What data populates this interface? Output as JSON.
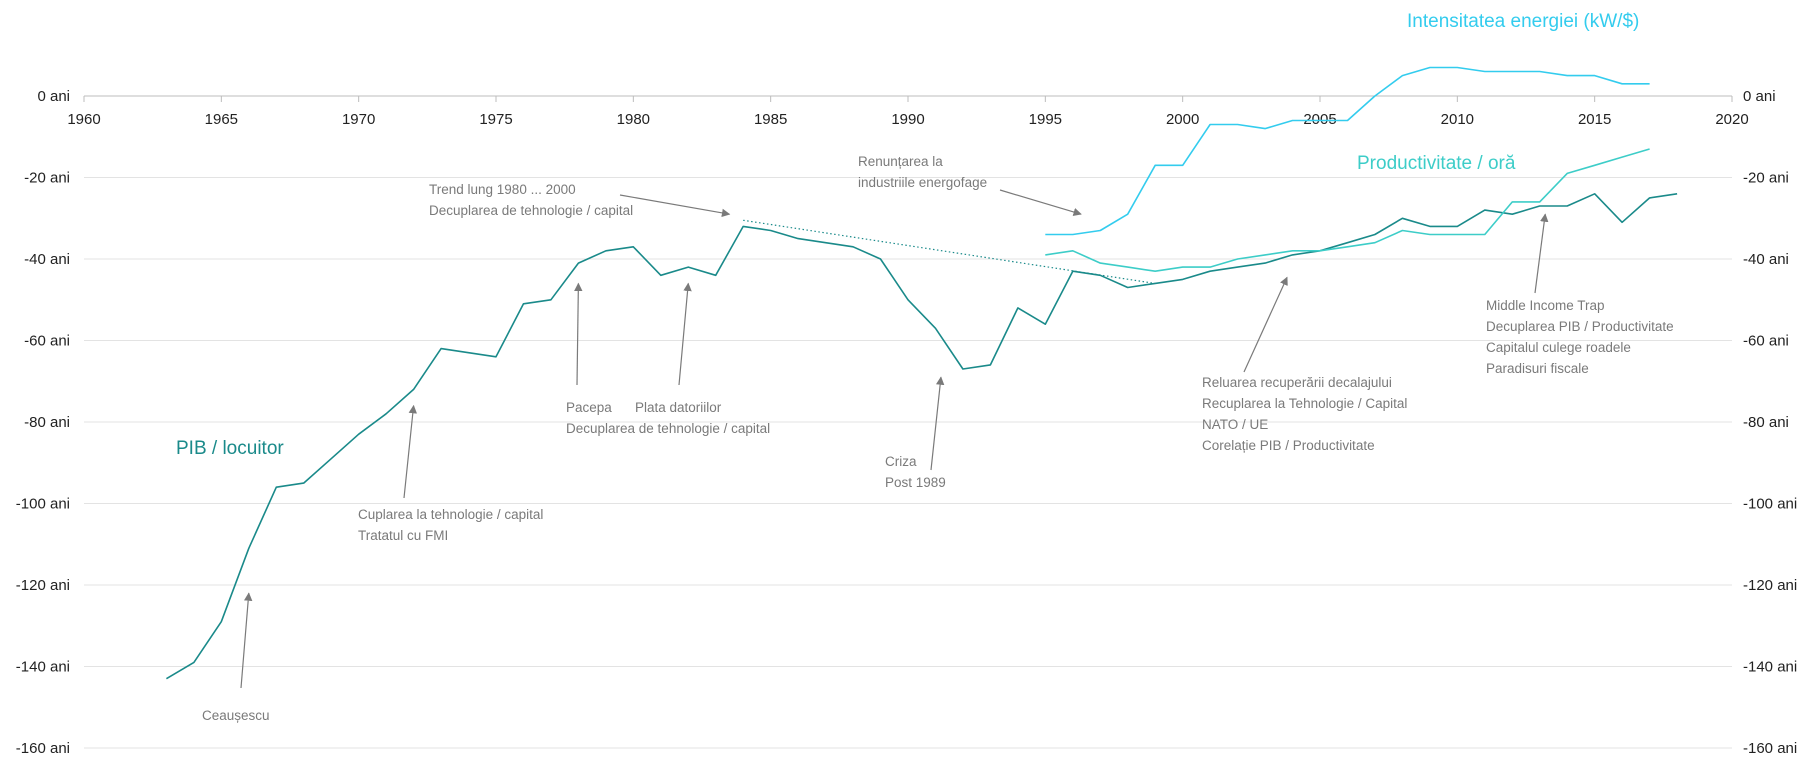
{
  "chart_data": {
    "type": "line",
    "title": "",
    "xlabel": "",
    "ylabel": "",
    "xlim": [
      1960,
      2020
    ],
    "ylim": [
      -160,
      0
    ],
    "y_unit": "ani",
    "x_ticks": [
      1960,
      1965,
      1970,
      1975,
      1980,
      1985,
      1990,
      1995,
      2000,
      2005,
      2010,
      2015,
      2020
    ],
    "y_ticks": [
      0,
      -20,
      -40,
      -60,
      -80,
      -100,
      -120,
      -140,
      -160
    ],
    "y_tick_labels": [
      "0 ani",
      "-20 ani",
      "-40 ani",
      "-60 ani",
      "-80 ani",
      "-100 ani",
      "-120 ani",
      "-140 ani",
      "-160 ani"
    ],
    "grid": "horizontal",
    "series": [
      {
        "name": "PIB / locuitor",
        "color": "#1a8a8a",
        "x": [
          1963,
          1964,
          1965,
          1966,
          1967,
          1968,
          1969,
          1970,
          1971,
          1972,
          1973,
          1974,
          1975,
          1976,
          1977,
          1978,
          1979,
          1980,
          1981,
          1982,
          1983,
          1984,
          1985,
          1986,
          1987,
          1988,
          1989,
          1990,
          1991,
          1992,
          1993,
          1994,
          1995,
          1996,
          1997,
          1998,
          1999,
          2000,
          2001,
          2002,
          2003,
          2004,
          2005,
          2006,
          2007,
          2008,
          2009,
          2010,
          2011,
          2012,
          2013,
          2014,
          2015,
          2016,
          2017,
          2018
        ],
        "y": [
          -143,
          -139,
          -129,
          -111,
          -96,
          -95,
          -89,
          -83,
          -78,
          -72,
          -62,
          -63,
          -64,
          -51,
          -50,
          -41,
          -38,
          -37,
          -44,
          -42,
          -44,
          -32,
          -33,
          -35,
          -36,
          -37,
          -40,
          -50,
          -57,
          -67,
          -66,
          -52,
          -56,
          -43,
          -44,
          -47,
          -46,
          -45,
          -43,
          -42,
          -41,
          -39,
          -38,
          -36,
          -34,
          -30,
          -32,
          -32,
          -28,
          -29,
          -27,
          -27,
          -24,
          -31,
          -25,
          -24
        ]
      },
      {
        "name": "Productivitate / oră",
        "color": "#3dcdc8",
        "x": [
          1995,
          1996,
          1997,
          1998,
          1999,
          2000,
          2001,
          2002,
          2003,
          2004,
          2005,
          2006,
          2007,
          2008,
          2009,
          2010,
          2011,
          2012,
          2013,
          2014,
          2015,
          2016,
          2017
        ],
        "y": [
          -39,
          -38,
          -41,
          -42,
          -43,
          -42,
          -42,
          -40,
          -39,
          -38,
          -38,
          -37,
          -36,
          -33,
          -34,
          -34,
          -34,
          -26,
          -26,
          -19,
          -17,
          -15,
          -13
        ]
      },
      {
        "name": "Intensitatea energiei (kW/$)",
        "color": "#33ccee",
        "x": [
          1995,
          1996,
          1997,
          1998,
          1999,
          2000,
          2001,
          2002,
          2003,
          2004,
          2005,
          2006,
          2007,
          2008,
          2009,
          2010,
          2011,
          2012,
          2013,
          2014,
          2015,
          2016,
          2017
        ],
        "y": [
          -34,
          -34,
          -33,
          -29,
          -17,
          -17,
          -7,
          -7,
          -8,
          -6,
          -6,
          -6,
          0,
          5,
          7,
          7,
          6,
          6,
          6,
          5,
          5,
          3,
          3
        ]
      }
    ],
    "trend_line": {
      "x": [
        1984,
        1999
      ],
      "y": [
        -30.5,
        -46
      ]
    },
    "annotations": [
      {
        "lines": [
          "Ceaușescu"
        ],
        "arrow_to": [
          1966,
          -122
        ]
      },
      {
        "lines": [
          "Cuplarea la tehnologie / capital",
          "Tratatul cu FMI"
        ],
        "arrow_to": [
          1972,
          -76
        ]
      },
      {
        "lines": [
          "Pacepa"
        ],
        "arrow_to": [
          1978,
          -46
        ]
      },
      {
        "lines": [
          "Plata datoriilor"
        ],
        "arrow_to": [
          1982,
          -46
        ]
      },
      {
        "lines": [
          "Decuplarea de tehnologie / capital"
        ]
      },
      {
        "lines": [
          "Trend lung 1980 ... 2000",
          "Decuplarea de tehnologie / capital"
        ],
        "arrow_to": [
          1983.5,
          -29
        ]
      },
      {
        "lines": [
          "Criza",
          "Post 1989"
        ],
        "arrow_to": [
          1991.2,
          -69
        ]
      },
      {
        "lines": [
          "Renunțarea la",
          "industriile energofage"
        ],
        "arrow_to": [
          1996.3,
          -29
        ]
      },
      {
        "lines": [
          "Reluarea recuperării decalajului",
          "Recuplarea la Tehnologie / Capital",
          "NATO / UE",
          "Corelație PIB / Productivitate"
        ],
        "arrow_to": [
          2003.8,
          -44.5
        ]
      },
      {
        "lines": [
          "Middle Income Trap",
          "Decuplarea PIB / Productivitate",
          "Capitalul culege roadele",
          "Paradisuri fiscale"
        ],
        "arrow_to": [
          2013.2,
          -29
        ]
      }
    ]
  }
}
